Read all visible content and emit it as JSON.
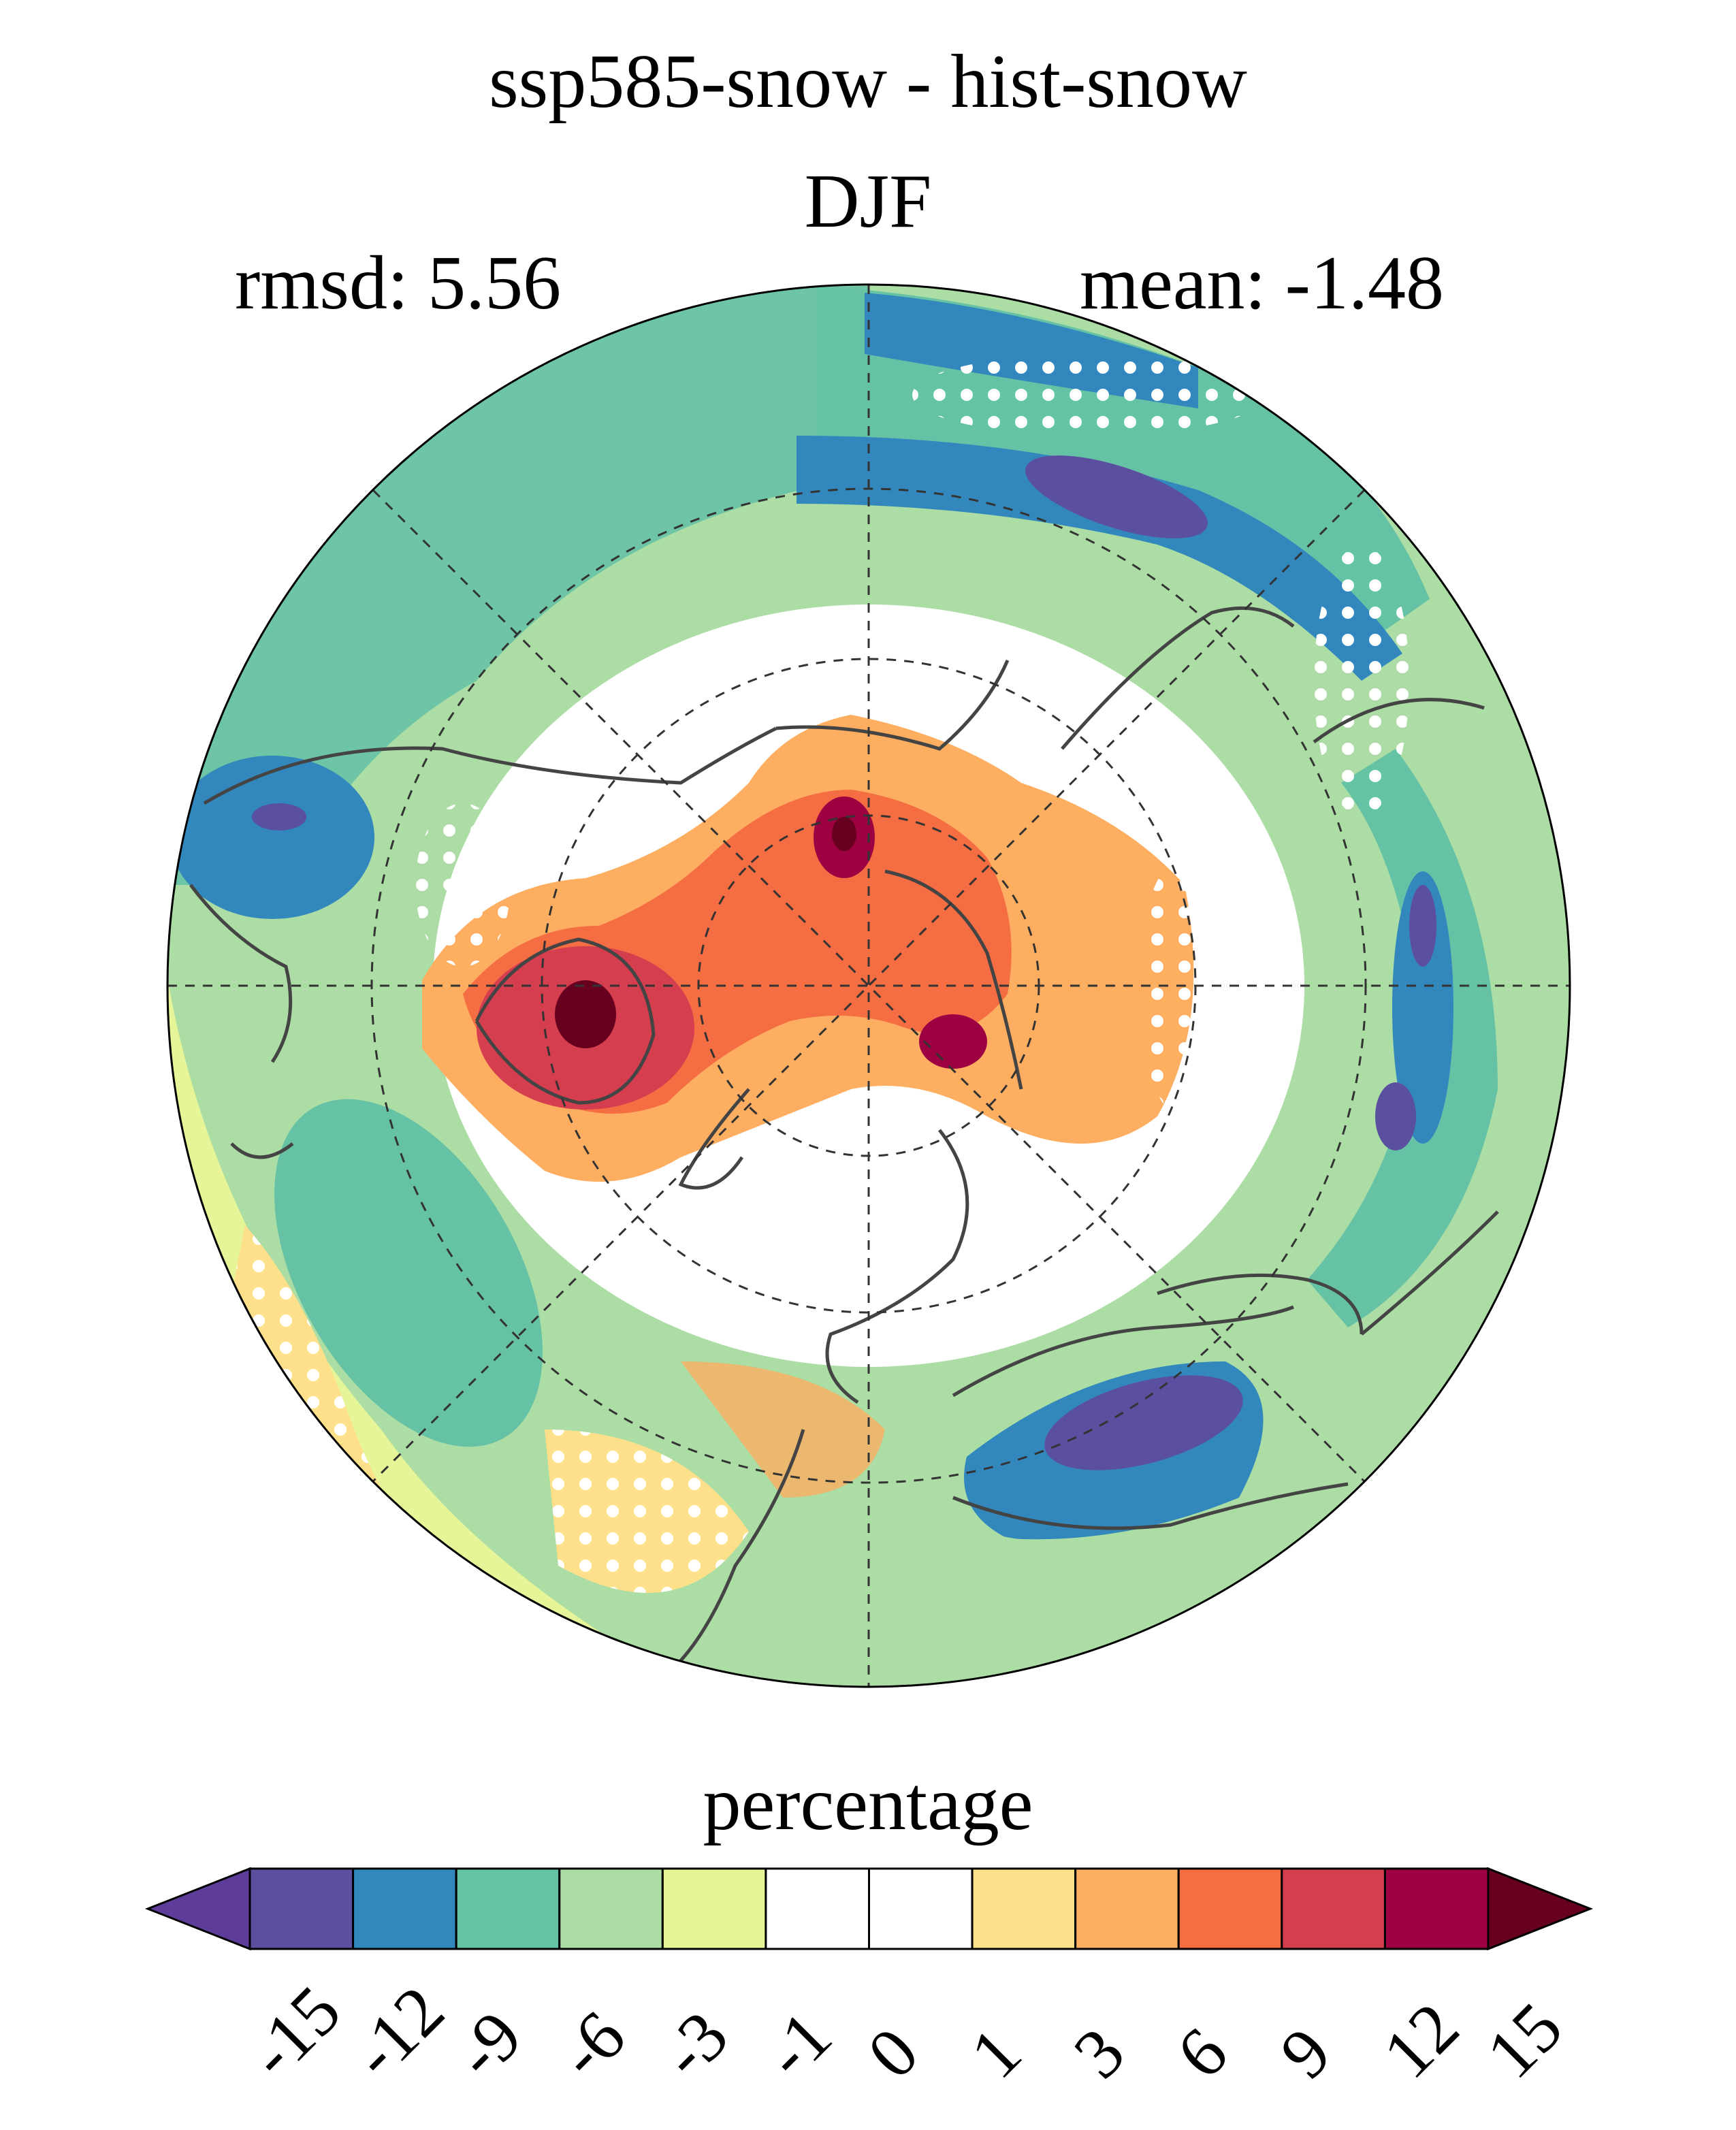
{
  "figure": {
    "title": "ssp585-snow - hist-snow",
    "season": "DJF",
    "rmsd_label": "rmsd: 5.56",
    "mean_label": "mean: -1.48"
  },
  "map": {
    "projection": "north-polar-stereographic",
    "variable": "snow cover difference",
    "stippling": "significance dots (white)"
  },
  "colorbar": {
    "title": "percentage",
    "ticks": [
      "-15",
      "-12",
      "-9",
      "-6",
      "-3",
      "-1",
      "0",
      "1",
      "3",
      "6",
      "9",
      "12",
      "15"
    ],
    "colors": [
      "#5e3c99",
      "#5b50a0",
      "#3288bd",
      "#66c2a5",
      "#abdda4",
      "#e6f598",
      "#ffffff",
      "#ffffff",
      "#fee08b",
      "#fdae61",
      "#f46d43",
      "#d53e4f",
      "#9e0142",
      "#67001f"
    ]
  },
  "palette": {
    "coast": "#444444",
    "grid": "#333333"
  }
}
